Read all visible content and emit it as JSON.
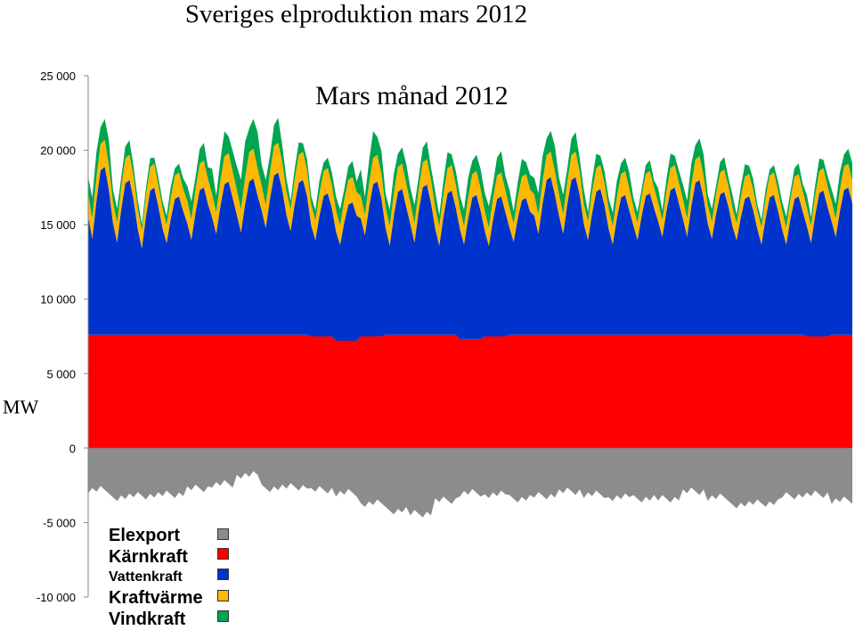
{
  "page": {
    "title": "Sveriges elproduktion mars 2012"
  },
  "chart_data": {
    "type": "area",
    "title": "Mars månad 2012",
    "xlabel": "",
    "ylabel": "MW",
    "ylim": [
      -10000,
      25000
    ],
    "yticks": [
      25000,
      20000,
      15000,
      10000,
      5000,
      0,
      -5000,
      -10000
    ],
    "ytick_labels": [
      "25 000",
      "20 000",
      "15 000",
      "10 000",
      "5 000",
      "0",
      "-5 000",
      "-10 000"
    ],
    "grid": false,
    "legend_position": "bottom-left",
    "x": {
      "start_day": 1,
      "end_day": 31,
      "unit": "day of March 2012",
      "samples_per_day": 6
    },
    "series": [
      {
        "name": "Elexport",
        "color": "#8c8c8c",
        "stack": "negative",
        "daily_values": [
          -2800,
          -3300,
          -3200,
          -3100,
          -2700,
          -2400,
          -1800,
          -2700,
          -2600,
          -2800,
          -3000,
          -3700,
          -4200,
          -4400,
          -3500,
          -3000,
          -3100,
          -3400,
          -3200,
          -2900,
          -3100,
          -3300,
          -3400,
          -3400,
          -2900,
          -3300,
          -3800,
          -3700,
          -3200,
          -3100,
          -3500
        ]
      },
      {
        "name": "Kärnkraft",
        "color": "#ff0000",
        "stack": "positive",
        "daily_values": [
          7600,
          7600,
          7600,
          7600,
          7600,
          7600,
          7600,
          7600,
          7600,
          7500,
          7200,
          7500,
          7600,
          7600,
          7600,
          7300,
          7500,
          7600,
          7600,
          7600,
          7600,
          7600,
          7600,
          7600,
          7600,
          7600,
          7600,
          7600,
          7600,
          7500,
          7600
        ]
      },
      {
        "name": "Vattenkraft",
        "color": "#0033cc",
        "stack": "positive",
        "daily_peak": [
          11300,
          10400,
          9900,
          9300,
          9900,
          10300,
          10500,
          10900,
          10400,
          9600,
          9300,
          10400,
          9800,
          10100,
          9700,
          9700,
          9400,
          9200,
          10600,
          10600,
          9800,
          9400,
          9500,
          9900,
          10400,
          9600,
          9300,
          9400,
          9300,
          9800,
          9900
        ],
        "daily_trough": [
          6200,
          6000,
          5600,
          6000,
          6200,
          6600,
          6700,
          7000,
          6800,
          6300,
          6300,
          6600,
          5800,
          6000,
          5800,
          6200,
          5900,
          6100,
          6600,
          6600,
          6200,
          5900,
          6200,
          6400,
          6400,
          6300,
          6200,
          5900,
          5900,
          6100,
          6400
        ]
      },
      {
        "name": "Kraftvärme",
        "color": "#ffb800",
        "stack": "positive",
        "daily_values": [
          1800,
          1700,
          1600,
          1600,
          1800,
          1900,
          2000,
          2000,
          1900,
          1700,
          1700,
          1800,
          1700,
          1700,
          1700,
          1600,
          1600,
          1600,
          1700,
          1700,
          1600,
          1600,
          1500,
          1500,
          1600,
          1500,
          1500,
          1500,
          1500,
          1500,
          1600
        ]
      },
      {
        "name": "Vindkraft",
        "color": "#00a550",
        "stack": "positive",
        "daily_values": [
          1400,
          800,
          500,
          600,
          1000,
          1400,
          2000,
          1400,
          700,
          700,
          900,
          1500,
          1100,
          1000,
          900,
          1100,
          1200,
          1000,
          1400,
          1100,
          800,
          900,
          600,
          800,
          1200,
          700,
          700,
          500,
          600,
          700,
          1000
        ]
      }
    ]
  }
}
